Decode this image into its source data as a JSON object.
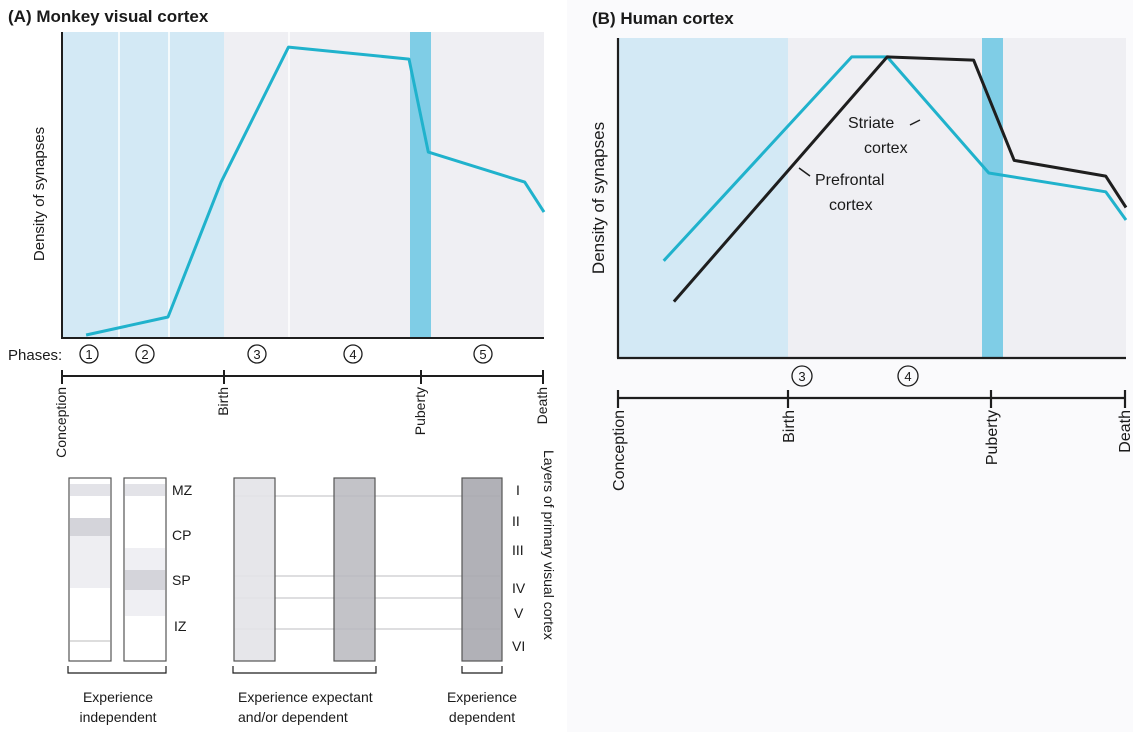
{
  "colors": {
    "accent": "#20b2cc",
    "dark_line": "#1e1e1e",
    "shade_light_blue": "#d3e9f5",
    "shade_gray": "#efeff3",
    "puberty_band": "#7fcde6",
    "layer_gray_light": "#e3e3e8",
    "layer_gray_dark": "#b3b3b8"
  },
  "panel_a": {
    "title": "(A)  Monkey visual cortex",
    "ylabel": "Density of synapses",
    "phases_label": "Phases:",
    "phases": [
      "1",
      "2",
      "3",
      "4",
      "5"
    ],
    "timeline_labels": [
      "Conception",
      "Birth",
      "Puberty",
      "Death"
    ]
  },
  "panel_b": {
    "title": "(B)  Human cortex",
    "ylabel": "Density of synapses",
    "phases": [
      "3",
      "4"
    ],
    "timeline_labels": [
      "Conception",
      "Birth",
      "Puberty",
      "Death"
    ],
    "annotations": {
      "striate_1": "Striate",
      "striate_2": "cortex",
      "prefrontal_1": "Prefrontal",
      "prefrontal_2": "cortex"
    }
  },
  "layers": {
    "side_title": "Layers of primary visual cortex",
    "zones": [
      "MZ",
      "CP",
      "SP",
      "IZ"
    ],
    "roman": [
      "I",
      "II",
      "III",
      "IV",
      "V",
      "VI"
    ],
    "captions": {
      "independent_1": "Experience",
      "independent_2": "independent",
      "expectant_1": "Experience expectant",
      "expectant_2": "and/or dependent",
      "dependent_1": "Experience",
      "dependent_2": "dependent"
    }
  },
  "chart_data": [
    {
      "type": "line",
      "title": "(A)  Monkey visual cortex",
      "ylabel": "Density of synapses",
      "x_axis_labels": [
        "Conception",
        "Birth",
        "Puberty",
        "Death"
      ],
      "x_range": [
        0,
        100
      ],
      "y_range": [
        0,
        100
      ],
      "series": [
        {
          "values": [
            [
              5,
              1
            ],
            [
              22,
              7
            ],
            [
              33,
              52
            ],
            [
              47,
              97
            ],
            [
              72,
              93
            ],
            [
              76,
              62
            ],
            [
              96,
              52
            ],
            [
              100,
              42
            ]
          ]
        }
      ],
      "phases": [
        "1",
        "2",
        "3",
        "4",
        "5"
      ]
    },
    {
      "type": "line",
      "title": "(B)  Human cortex",
      "ylabel": "Density of synapses",
      "x_axis_labels": [
        "Conception",
        "Birth",
        "Puberty",
        "Death"
      ],
      "x_range": [
        0,
        100
      ],
      "y_range": [
        0,
        100
      ],
      "series": [
        {
          "name": "Striate cortex",
          "values": [
            [
              9,
              31
            ],
            [
              46,
              96
            ],
            [
              53,
              96
            ],
            [
              73,
              59
            ],
            [
              96,
              53
            ],
            [
              100,
              44
            ]
          ]
        },
        {
          "name": "Prefrontal cortex",
          "values": [
            [
              11,
              18
            ],
            [
              53,
              96
            ],
            [
              70,
              95
            ],
            [
              78,
              63
            ],
            [
              96,
              58
            ],
            [
              100,
              48
            ]
          ]
        }
      ],
      "phases": [
        "3",
        "4"
      ]
    }
  ]
}
